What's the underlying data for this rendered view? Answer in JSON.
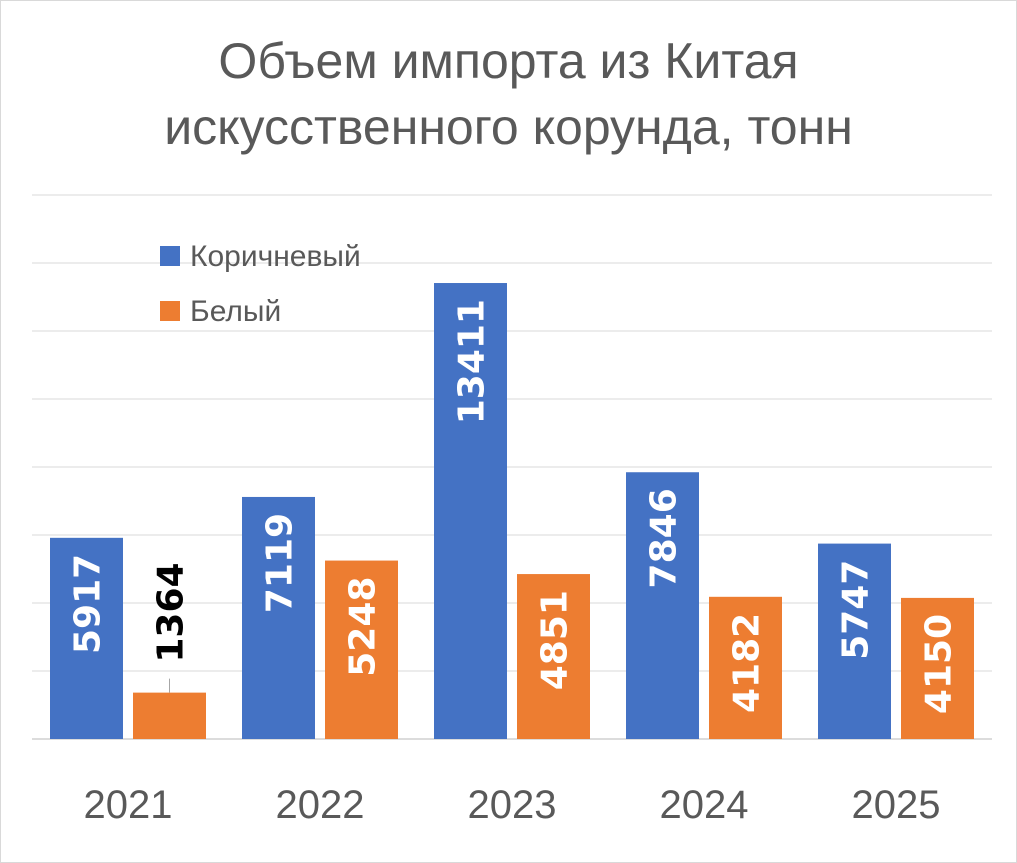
{
  "chart_data": {
    "type": "bar",
    "title_lines": [
      "Объем импорта из Китая",
      "искусственного корунда, тонн"
    ],
    "categories": [
      "2021",
      "2022",
      "2023",
      "2024",
      "2025"
    ],
    "series": [
      {
        "name": "Коричневый",
        "color": "#4472C4",
        "values": [
          5917,
          7119,
          13411,
          7846,
          5747
        ],
        "value_labels": [
          "5917",
          "7119",
          "13411",
          "7846",
          "5747"
        ]
      },
      {
        "name": "Белый",
        "color": "#ED7D31",
        "values": [
          1364,
          5248,
          4851,
          4182,
          4150
        ],
        "value_labels": [
          "1364",
          "5248",
          "4851",
          "4182",
          "4150"
        ]
      }
    ],
    "ylim": [
      0,
      16000
    ],
    "grid": true,
    "legend_position": "top-left",
    "label_color_inside": "#ffffff",
    "label_color_outside": "#000000"
  }
}
